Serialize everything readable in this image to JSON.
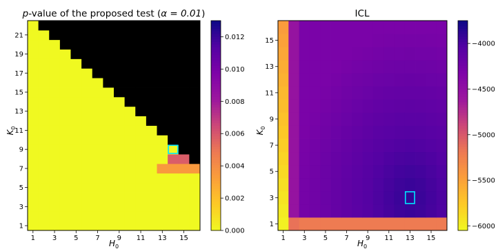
{
  "chart_data": [
    {
      "type": "heatmap",
      "title": "p-value of the proposed test (α = 0.01)",
      "title_prefix": "p",
      "title_rest": "-value of the proposed test (",
      "title_alpha": "α = 0.01",
      "title_close": ")",
      "xlabel": "H",
      "xlabel_sub": "0",
      "ylabel": "K",
      "ylabel_sub": "0",
      "x_categories": [
        1,
        2,
        3,
        4,
        5,
        6,
        7,
        8,
        9,
        10,
        11,
        12,
        13,
        14,
        15,
        16
      ],
      "y_categories": [
        1,
        2,
        3,
        4,
        5,
        6,
        7,
        8,
        9,
        10,
        11,
        12,
        13,
        14,
        15,
        16,
        17,
        18,
        19,
        20,
        21,
        22
      ],
      "x_ticks": [
        "1",
        "3",
        "5",
        "7",
        "9",
        "11",
        "13",
        "15"
      ],
      "y_ticks": [
        "1",
        "3",
        "5",
        "7",
        "9",
        "11",
        "13",
        "15",
        "17",
        "19",
        "21"
      ],
      "colorscale": "plasma_reversed",
      "masked_color": "#000000",
      "mask_rule": "cells with K0 > 23 - H0 (upper-right triangle) are not computed",
      "background_value": 0.0,
      "special_cells": [
        {
          "h": 13,
          "k": 7,
          "value": 0.0035
        },
        {
          "h": 14,
          "k": 7,
          "value": 0.0035
        },
        {
          "h": 15,
          "k": 7,
          "value": 0.0035
        },
        {
          "h": 16,
          "k": 7,
          "value": 0.0035
        },
        {
          "h": 14,
          "k": 8,
          "value": 0.0058
        },
        {
          "h": 15,
          "k": 8,
          "value": 0.0058
        }
      ],
      "highlight": {
        "h": 14,
        "k": 9,
        "color": "#00e5ff"
      },
      "colorbar": {
        "min": 0.0,
        "max": 0.013,
        "ticks": [
          {
            "value": 0.0,
            "label": "0.000"
          },
          {
            "value": 0.002,
            "label": "0.002"
          },
          {
            "value": 0.004,
            "label": "0.004"
          },
          {
            "value": 0.006,
            "label": "0.006"
          },
          {
            "value": 0.008,
            "label": "0.008"
          },
          {
            "value": 0.01,
            "label": "0.010"
          },
          {
            "value": 0.012,
            "label": "0.012"
          }
        ]
      }
    },
    {
      "type": "heatmap",
      "title": "ICL",
      "xlabel": "H",
      "xlabel_sub": "0",
      "ylabel": "K",
      "ylabel_sub": "0",
      "x_categories": [
        1,
        2,
        3,
        4,
        5,
        6,
        7,
        8,
        9,
        10,
        11,
        12,
        13,
        14,
        15,
        16
      ],
      "y_categories": [
        1,
        2,
        3,
        4,
        5,
        6,
        7,
        8,
        9,
        10,
        11,
        12,
        13,
        14,
        15,
        16
      ],
      "x_ticks": [
        "1",
        "3",
        "5",
        "7",
        "9",
        "11",
        "13",
        "15"
      ],
      "y_ticks": [
        "1",
        "3",
        "5",
        "7",
        "9",
        "11",
        "13",
        "15"
      ],
      "colorscale": "plasma_reversed",
      "value_model": {
        "h1_column": {
          "k1": -6000,
          "k16": -5450
        },
        "k1_row": -5200,
        "interior_best": -3900,
        "interior_worst": -4300,
        "best_cell": {
          "h": 13,
          "k": 3
        }
      },
      "highlight": {
        "h": 13,
        "k": 3,
        "color": "#00e5ff"
      },
      "colorbar": {
        "min": -6050,
        "max": -3750,
        "ticks": [
          {
            "value": -6000,
            "label": "−6000"
          },
          {
            "value": -5500,
            "label": "−5500"
          },
          {
            "value": -5000,
            "label": "−5000"
          },
          {
            "value": -4500,
            "label": "−4500"
          },
          {
            "value": -4000,
            "label": "−4000"
          }
        ]
      }
    }
  ]
}
